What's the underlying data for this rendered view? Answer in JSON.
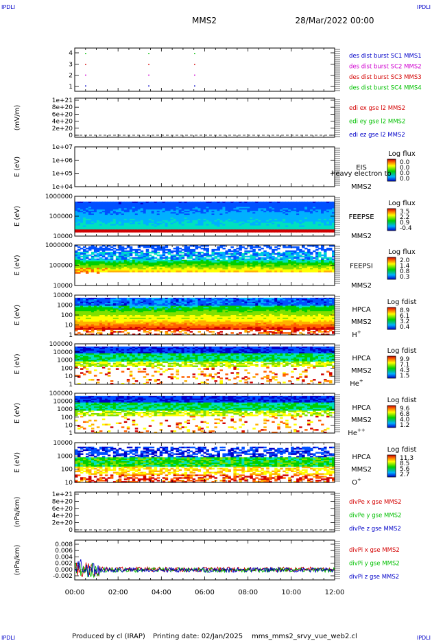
{
  "header": {
    "corner_tl": "IPDLI",
    "corner_tr": "IPDLI",
    "corner_bl": "IPDLI",
    "corner_br": "IPDLI",
    "spacecraft": "MMS2",
    "date": "28/Mar/2022 00:00"
  },
  "footer": {
    "produced_by": "Produced by cl (IRAP)",
    "printing_date": "Printing date: 02/Jan/2025",
    "filename": "mms_mms2_srvy_vue_web2.cl"
  },
  "colors": {
    "red": "#d40000",
    "green": "#00c000",
    "blue": "#0000c8",
    "magenta": "#d000d0"
  },
  "chart_data": [
    {
      "type": "scatter",
      "panel": "burst",
      "yticks": [
        "1",
        "2",
        "3",
        "4"
      ],
      "ylim": [
        0.5,
        4.5
      ],
      "series": [
        {
          "name": "des dist burst SC1 MMS1",
          "color": "#0000c8",
          "y": 1,
          "x": [
            "00:30",
            "03:25",
            "05:32"
          ]
        },
        {
          "name": "des dist burst SC2 MMS2",
          "color": "#d000d0",
          "y": 2,
          "x": [
            "00:30",
            "03:25",
            "05:32"
          ]
        },
        {
          "name": "des dist burst SC3 MMS3",
          "color": "#d40000",
          "y": 3,
          "x": [
            "00:30",
            "03:25",
            "05:32"
          ]
        },
        {
          "name": "des dist burst SC4 MMS4",
          "color": "#00c000",
          "y": 4,
          "x": [
            "00:30",
            "03:25",
            "05:32"
          ]
        }
      ]
    },
    {
      "type": "line",
      "panel": "edi",
      "ylabel": "(mV/m)",
      "yticks": [
        "1e+21",
        "8e+20",
        "6e+20",
        "4e+20",
        "2e+20",
        "0"
      ],
      "series": [
        {
          "name": "edi ex gse l2 MMS2",
          "color": "#d40000"
        },
        {
          "name": "edi ey gse l2 MMS2",
          "color": "#00c000"
        },
        {
          "name": "edi ez gse l2 MMS2",
          "color": "#0000c8"
        }
      ]
    },
    {
      "type": "heatmap",
      "panel": "eis",
      "ylabel": "E (eV)",
      "yticks": [
        "1e+07",
        "1e+06",
        "1e+05",
        "1e+04"
      ],
      "instrument": "EIS",
      "spacecraft": "MMS2",
      "overlay_text": "heavy electron to",
      "cbar_title": "Log flux",
      "cbar_ticks": [
        "0.0",
        "0.0",
        "0.0",
        "0.0"
      ]
    },
    {
      "type": "heatmap",
      "panel": "feepse",
      "ylabel": "E (eV)",
      "yticks": [
        "1000000",
        "100000",
        "10000"
      ],
      "instrument": "FEEPSE",
      "spacecraft": "MMS2",
      "cbar_title": "Log flux",
      "cbar_ticks": [
        "3.5",
        "2.2",
        "0.9",
        "-0.4"
      ]
    },
    {
      "type": "heatmap",
      "panel": "feepsi",
      "ylabel": "E (eV)",
      "yticks": [
        "1000000",
        "100000",
        "10000"
      ],
      "instrument": "FEEPSI",
      "spacecraft": "MMS2",
      "cbar_title": "Log flux",
      "cbar_ticks": [
        "2.0",
        "1.4",
        "0.8",
        "0.3"
      ]
    },
    {
      "type": "heatmap",
      "panel": "hpca_h",
      "ylabel": "E (eV)",
      "yticks": [
        "10000",
        "1000",
        "100",
        "10",
        "1"
      ],
      "instrument": "HPCA",
      "spacecraft": "MMS2",
      "species_base": "H",
      "species_sup": "+",
      "cbar_title": "Log fdist",
      "cbar_ticks": [
        "8.9",
        "6.1",
        "3.2",
        "0.4"
      ]
    },
    {
      "type": "heatmap",
      "panel": "hpca_he",
      "ylabel": "E (eV)",
      "yticks": [
        "100000",
        "10000",
        "1000",
        "100",
        "10",
        "1"
      ],
      "instrument": "HPCA",
      "spacecraft": "MMS2",
      "species_base": "He",
      "species_sup": "+",
      "cbar_title": "Log fdist",
      "cbar_ticks": [
        "9.9",
        "7.1",
        "4.3",
        "1.5"
      ]
    },
    {
      "type": "heatmap",
      "panel": "hpca_hepp",
      "ylabel": "E (eV)",
      "yticks": [
        "100000",
        "10000",
        "1000",
        "100",
        "10",
        "1"
      ],
      "instrument": "HPCA",
      "spacecraft": "MMS2",
      "species_base": "He",
      "species_sup": "++",
      "cbar_title": "Log fdist",
      "cbar_ticks": [
        "9.6",
        "6.8",
        "4.0",
        "1.2"
      ]
    },
    {
      "type": "heatmap",
      "panel": "hpca_o",
      "ylabel": "E (eV)",
      "yticks": [
        "10000",
        "1000",
        "100",
        "10"
      ],
      "instrument": "HPCA",
      "spacecraft": "MMS2",
      "species_base": "O",
      "species_sup": "+",
      "cbar_title": "Log fdist",
      "cbar_ticks": [
        "11.3",
        "8.5",
        "5.6",
        "2.7"
      ]
    },
    {
      "type": "line",
      "panel": "divpe",
      "ylabel": "(nPa/km)",
      "yticks": [
        "1e+21",
        "8e+20",
        "6e+20",
        "4e+20",
        "2e+20",
        "0"
      ],
      "series": [
        {
          "name": "divPe x gse MMS2",
          "color": "#d40000"
        },
        {
          "name": "divPe y gse MMS2",
          "color": "#00c000"
        },
        {
          "name": "divPe z gse MMS2",
          "color": "#0000c8"
        }
      ]
    },
    {
      "type": "line",
      "panel": "divpi",
      "ylabel": "(nPa/km)",
      "yticks": [
        "0.008",
        "0.006",
        "0.004",
        "0.002",
        "0.000",
        "-0.002"
      ],
      "ylim": [
        -0.003,
        0.009
      ],
      "series": [
        {
          "name": "divPi x gse MMS2",
          "color": "#d40000"
        },
        {
          "name": "divPi y gse MMS2",
          "color": "#00c000"
        },
        {
          "name": "divPi z gse MMS2",
          "color": "#0000c8"
        }
      ]
    }
  ],
  "x_axis": {
    "ticks": [
      "00:00",
      "02:00",
      "04:00",
      "06:00",
      "08:00",
      "10:00",
      "12:00"
    ],
    "range": [
      "00:00",
      "12:00"
    ]
  }
}
